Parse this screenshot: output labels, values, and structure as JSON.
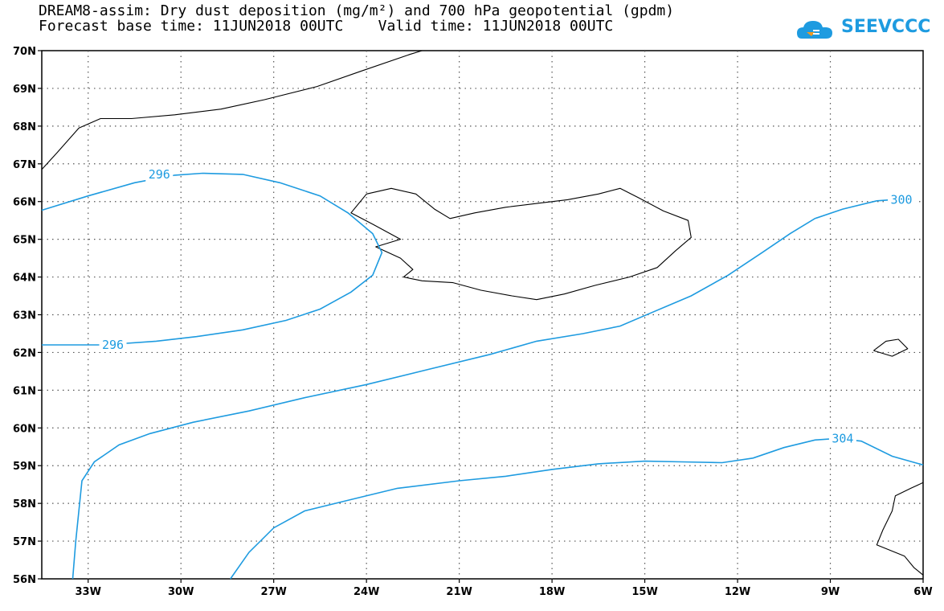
{
  "title": {
    "line1": "DREAM8-assim: Dry dust deposition (mg/m²) and 700 hPa geopotential (gpdm)",
    "line2": "Forecast base time: 11JUN2018 00UTC    Valid time: 11JUN2018 00UTC"
  },
  "logo": {
    "text": "SEEVCCC",
    "icon": "cloud-icon",
    "color": "#1e9be0"
  },
  "map": {
    "lon_range": [
      -34.5,
      -6
    ],
    "lat_range": [
      56,
      70
    ],
    "lon_ticks": [
      {
        "value": -33,
        "label": "33W"
      },
      {
        "value": -30,
        "label": "30W"
      },
      {
        "value": -27,
        "label": "27W"
      },
      {
        "value": -24,
        "label": "24W"
      },
      {
        "value": -21,
        "label": "21W"
      },
      {
        "value": -18,
        "label": "18W"
      },
      {
        "value": -15,
        "label": "15W"
      },
      {
        "value": -12,
        "label": "12W"
      },
      {
        "value": -9,
        "label": "9W"
      },
      {
        "value": -6,
        "label": "6W"
      }
    ],
    "lat_ticks": [
      {
        "value": 56,
        "label": "56N"
      },
      {
        "value": 57,
        "label": "57N"
      },
      {
        "value": 58,
        "label": "58N"
      },
      {
        "value": 59,
        "label": "59N"
      },
      {
        "value": 60,
        "label": "60N"
      },
      {
        "value": 61,
        "label": "61N"
      },
      {
        "value": 62,
        "label": "62N"
      },
      {
        "value": 63,
        "label": "63N"
      },
      {
        "value": 64,
        "label": "64N"
      },
      {
        "value": 65,
        "label": "65N"
      },
      {
        "value": 66,
        "label": "66N"
      },
      {
        "value": 67,
        "label": "67N"
      },
      {
        "value": 68,
        "label": "68N"
      },
      {
        "value": 69,
        "label": "69N"
      },
      {
        "value": 70,
        "label": "70N"
      }
    ],
    "grid": "dotted",
    "contour_color": "#1e9be0",
    "contours": [
      {
        "name": "296-closed",
        "label": "296",
        "label_at": [
          -30.7,
          66.72
        ],
        "points": [
          [
            -34.5,
            65.77
          ],
          [
            -33,
            66.15
          ],
          [
            -31.5,
            66.5
          ],
          [
            -30.2,
            66.7
          ],
          [
            -29.3,
            66.75
          ],
          [
            -28,
            66.72
          ],
          [
            -26.8,
            66.5
          ],
          [
            -25.5,
            66.15
          ],
          [
            -24.6,
            65.7
          ],
          [
            -23.8,
            65.15
          ],
          [
            -23.5,
            64.65
          ],
          [
            -23.8,
            64.05
          ],
          [
            -24.5,
            63.6
          ],
          [
            -25.5,
            63.15
          ],
          [
            -26.6,
            62.85
          ],
          [
            -28,
            62.6
          ],
          [
            -29.5,
            62.42
          ],
          [
            -30.8,
            62.3
          ],
          [
            -32.5,
            62.2
          ],
          [
            -34.5,
            62.2
          ]
        ],
        "gap": [
          -32.6,
          -31.8
        ]
      },
      {
        "name": "300",
        "label": "300",
        "label_at": [
          -6.7,
          66.05
        ],
        "points": [
          [
            -33.5,
            56
          ],
          [
            -33.4,
            57
          ],
          [
            -33.2,
            58.6
          ],
          [
            -32.8,
            59.1
          ],
          [
            -32,
            59.55
          ],
          [
            -31,
            59.85
          ],
          [
            -29.6,
            60.15
          ],
          [
            -27.8,
            60.45
          ],
          [
            -26,
            60.8
          ],
          [
            -24,
            61.15
          ],
          [
            -22,
            61.55
          ],
          [
            -20,
            61.95
          ],
          [
            -18.5,
            62.3
          ],
          [
            -17,
            62.5
          ],
          [
            -15.8,
            62.7
          ],
          [
            -14.8,
            63.05
          ],
          [
            -13.5,
            63.5
          ],
          [
            -12.3,
            64.05
          ],
          [
            -11.2,
            64.65
          ],
          [
            -10.3,
            65.15
          ],
          [
            -9.5,
            65.55
          ],
          [
            -8.6,
            65.8
          ],
          [
            -7.5,
            66.02
          ],
          [
            -7,
            66.05
          ]
        ]
      },
      {
        "name": "304",
        "label": "304",
        "label_at": [
          -8.6,
          59.72
        ],
        "points": [
          [
            -28.4,
            56
          ],
          [
            -27.8,
            56.7
          ],
          [
            -27,
            57.35
          ],
          [
            -26,
            57.8
          ],
          [
            -24.5,
            58.1
          ],
          [
            -23,
            58.4
          ],
          [
            -21,
            58.6
          ],
          [
            -19.5,
            58.72
          ],
          [
            -18,
            58.9
          ],
          [
            -16.5,
            59.05
          ],
          [
            -15,
            59.12
          ],
          [
            -13.8,
            59.1
          ],
          [
            -12.5,
            59.08
          ],
          [
            -11.5,
            59.2
          ],
          [
            -10.5,
            59.48
          ],
          [
            -9.5,
            59.68
          ],
          [
            -8.8,
            59.72
          ],
          [
            -8,
            59.65
          ],
          [
            -7,
            59.25
          ],
          [
            -6,
            59.02
          ]
        ],
        "gap": [
          -9.5,
          -7.9
        ]
      }
    ],
    "coastlines": [
      {
        "name": "iceland",
        "points": [
          [
            -22.8,
            64.0
          ],
          [
            -22.2,
            63.9
          ],
          [
            -21.2,
            63.85
          ],
          [
            -20.3,
            63.65
          ],
          [
            -19.3,
            63.5
          ],
          [
            -18.5,
            63.4
          ],
          [
            -17.6,
            63.55
          ],
          [
            -16.6,
            63.78
          ],
          [
            -15.5,
            64.0
          ],
          [
            -14.6,
            64.25
          ],
          [
            -14.0,
            64.7
          ],
          [
            -13.5,
            65.05
          ],
          [
            -13.6,
            65.5
          ],
          [
            -14.4,
            65.75
          ],
          [
            -15.2,
            66.1
          ],
          [
            -15.8,
            66.35
          ],
          [
            -16.5,
            66.2
          ],
          [
            -17.5,
            66.05
          ],
          [
            -18.5,
            65.95
          ],
          [
            -19.5,
            65.85
          ],
          [
            -20.5,
            65.7
          ],
          [
            -21.3,
            65.55
          ],
          [
            -21.8,
            65.8
          ],
          [
            -22.4,
            66.2
          ],
          [
            -23.2,
            66.35
          ],
          [
            -24.0,
            66.2
          ],
          [
            -24.5,
            65.7
          ],
          [
            -23.8,
            65.4
          ],
          [
            -22.9,
            65.0
          ],
          [
            -23.7,
            64.8
          ],
          [
            -22.9,
            64.5
          ],
          [
            -22.5,
            64.2
          ],
          [
            -22.8,
            64.0
          ]
        ]
      },
      {
        "name": "greenland",
        "points": [
          [
            -34.5,
            66.85
          ],
          [
            -34.0,
            67.3
          ],
          [
            -33.3,
            67.95
          ],
          [
            -32.6,
            68.2
          ],
          [
            -31.6,
            68.2
          ],
          [
            -30.2,
            68.3
          ],
          [
            -28.7,
            68.45
          ],
          [
            -27.3,
            68.7
          ],
          [
            -25.6,
            69.05
          ],
          [
            -24.2,
            69.45
          ],
          [
            -22.6,
            69.9
          ],
          [
            -22.2,
            70.0
          ]
        ]
      },
      {
        "name": "faroe",
        "points": [
          [
            -7.6,
            62.05
          ],
          [
            -7.2,
            62.3
          ],
          [
            -6.8,
            62.35
          ],
          [
            -6.5,
            62.1
          ],
          [
            -7.0,
            61.9
          ],
          [
            -7.6,
            62.05
          ]
        ]
      },
      {
        "name": "scotland",
        "points": [
          [
            -6,
            58.55
          ],
          [
            -6.4,
            58.4
          ],
          [
            -6.9,
            58.2
          ],
          [
            -7.0,
            57.8
          ],
          [
            -7.3,
            57.3
          ],
          [
            -7.5,
            56.9
          ],
          [
            -6.6,
            56.6
          ],
          [
            -6.3,
            56.3
          ],
          [
            -6,
            56.1
          ]
        ]
      }
    ]
  }
}
